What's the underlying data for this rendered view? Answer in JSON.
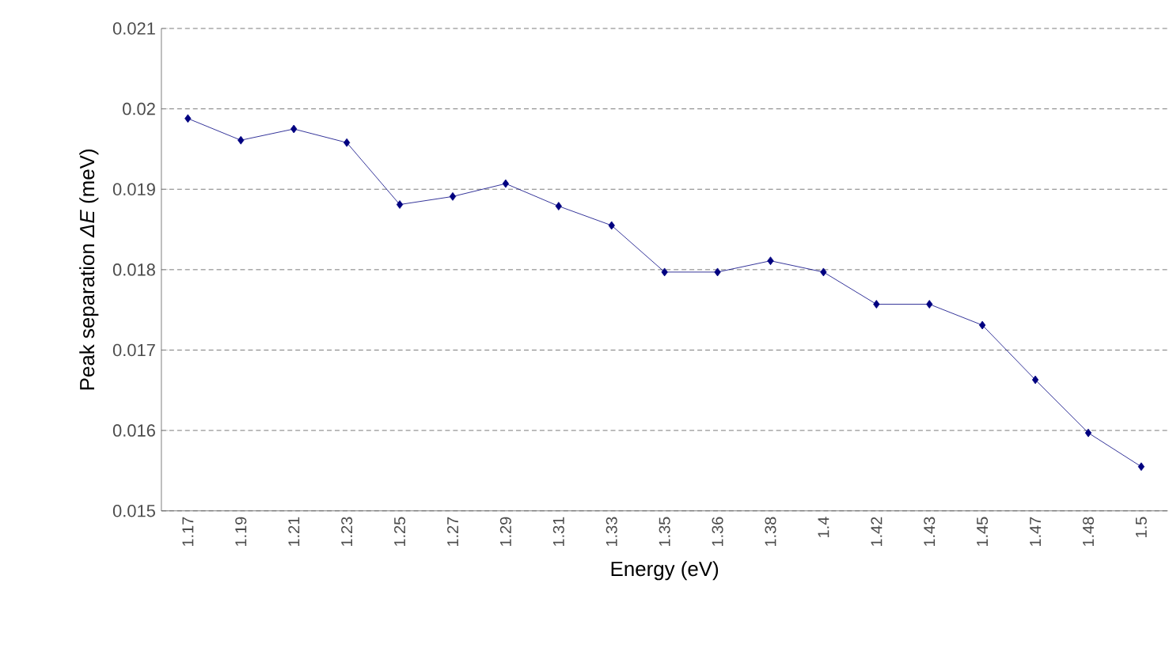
{
  "chart_data": {
    "type": "line",
    "xlabel": "Energy (eV)",
    "ylabel": "Peak separation *ΔE* (meV)",
    "categories": [
      "1.17",
      "1.19",
      "1.21",
      "1.23",
      "1.25",
      "1.27",
      "1.29",
      "1.31",
      "1.33",
      "1.35",
      "1.36",
      "1.38",
      "1.4",
      "1.42",
      "1.43",
      "1.45",
      "1.47",
      "1.48",
      "1.5"
    ],
    "series": [
      {
        "color": "#000080",
        "values": [
          0.01988,
          0.01961,
          0.01975,
          0.01958,
          0.01881,
          0.01891,
          0.01907,
          0.01879,
          0.01855,
          0.01797,
          0.01797,
          0.01811,
          0.01797,
          0.01757,
          0.01757,
          0.01731,
          0.01663,
          0.01597,
          0.01555
        ]
      }
    ],
    "ylim": [
      0.015,
      0.021
    ],
    "yticks": [
      0.015,
      0.016,
      0.017,
      0.018,
      0.019,
      0.02,
      0.021
    ],
    "grid": "y",
    "marker": "diamond",
    "line_style": "solid"
  }
}
